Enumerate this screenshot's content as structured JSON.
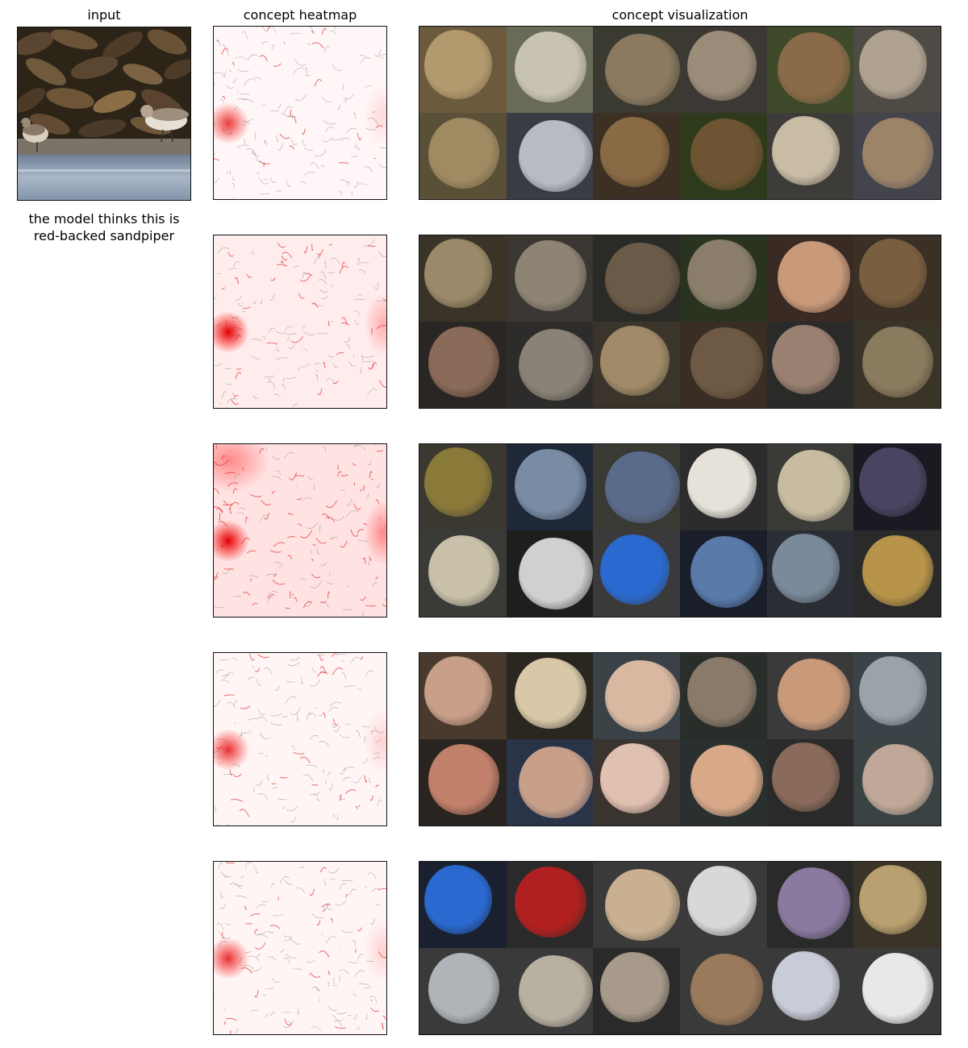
{
  "titles": {
    "input": "input",
    "heatmap": "concept heatmap",
    "visualization": "concept visualization"
  },
  "caption": {
    "line1": "the model thinks this is",
    "line2": "red-backed sandpiper"
  },
  "rows": [
    {
      "heatmap_level": 0.25,
      "tiles": [
        [
          "#6b5a3e",
          "#b39a6e"
        ],
        [
          "#6a6a58",
          "#c8c2b4"
        ],
        [
          "#3a3a30",
          "#8b7960"
        ],
        [
          "#3c3834",
          "#9a8c78"
        ],
        [
          "#3e4a2a",
          "#8a6a48"
        ],
        [
          "#4e4a44",
          "#b0a290"
        ],
        [
          "#5a5038",
          "#a08a62"
        ],
        [
          "#3a3c44",
          "#b8bcc2"
        ],
        [
          "#3c3024",
          "#8a6a44"
        ],
        [
          "#2e3a1c",
          "#6e5432"
        ],
        [
          "#3e3c38",
          "#c8bca4"
        ],
        [
          "#44444c",
          "#9c8468"
        ]
      ]
    },
    {
      "heatmap_level": 0.55,
      "tiles": [
        [
          "#3a3428",
          "#9a8a6a"
        ],
        [
          "#3a3632",
          "#8e8474"
        ],
        [
          "#2a2a26",
          "#6a5a48"
        ],
        [
          "#2a3220",
          "#8a7e6a"
        ],
        [
          "#3a2a24",
          "#c89a7a"
        ],
        [
          "#3a3026",
          "#7a5e40"
        ],
        [
          "#2a2624",
          "#8a6a58"
        ],
        [
          "#2e2c2a",
          "#8a8276"
        ],
        [
          "#3a342a",
          "#a08a68"
        ],
        [
          "#3a2e24",
          "#6e5a44"
        ],
        [
          "#2a2a28",
          "#9a8070"
        ],
        [
          "#3a3428",
          "#8a7a5e"
        ]
      ]
    },
    {
      "heatmap_level": 0.85,
      "tiles": [
        [
          "#3a3830",
          "#8a7a3a"
        ],
        [
          "#1e2838",
          "#7a8ca4"
        ],
        [
          "#3a3a34",
          "#5a6a8a"
        ],
        [
          "#2c2c2c",
          "#e6e2da"
        ],
        [
          "#3a3a36",
          "#c8bca0"
        ],
        [
          "#1a1a22",
          "#4a4460"
        ],
        [
          "#3a3a36",
          "#c8c0a8"
        ],
        [
          "#1e1e1e",
          "#d0d0d0"
        ],
        [
          "#3a3a3a",
          "#2a6ad0"
        ],
        [
          "#1a1e2a",
          "#5a7aaa"
        ],
        [
          "#2a2e34",
          "#7a8a9a"
        ],
        [
          "#2a2a2a",
          "#b8944a"
        ]
      ]
    },
    {
      "heatmap_level": 0.3,
      "tiles": [
        [
          "#4a3a2e",
          "#c8a08a"
        ],
        [
          "#2a2620",
          "#d8c8a8"
        ],
        [
          "#3a4248",
          "#d8b8a0"
        ],
        [
          "#2a2e2a",
          "#8a7a6a"
        ],
        [
          "#3a3a3a",
          "#c89a7a"
        ],
        [
          "#3a4448",
          "#9aa4a8"
        ],
        [
          "#2a2420",
          "#c0806a"
        ],
        [
          "#2a3448",
          "#c8a08a"
        ],
        [
          "#3a3430",
          "#e0c0b0"
        ],
        [
          "#2a3030",
          "#d8a888"
        ],
        [
          "#2a2a2a",
          "#8a6a5a"
        ],
        [
          "#3a4244",
          "#c0a898"
        ]
      ]
    },
    {
      "heatmap_level": 0.3,
      "tiles": [
        [
          "#1a2030",
          "#2a6ad0"
        ],
        [
          "#2a2a2a",
          "#b02020"
        ],
        [
          "#3a3a3a",
          "#c8b090"
        ],
        [
          "#3a3a3a",
          "#d8d8d8"
        ],
        [
          "#2a2a2a",
          "#8a7aa0"
        ],
        [
          "#3a3428",
          "#b8a070"
        ],
        [
          "#3a3a3a",
          "#b0b4b8"
        ],
        [
          "#3a3a3a",
          "#b8b0a0"
        ],
        [
          "#2a2a2a",
          "#a89a8a"
        ],
        [
          "#3a3a3a",
          "#9a7a5a"
        ],
        [
          "#3a3a3a",
          "#c8ccd8"
        ],
        [
          "#3a3a3a",
          "#e8e8e8"
        ]
      ]
    }
  ]
}
